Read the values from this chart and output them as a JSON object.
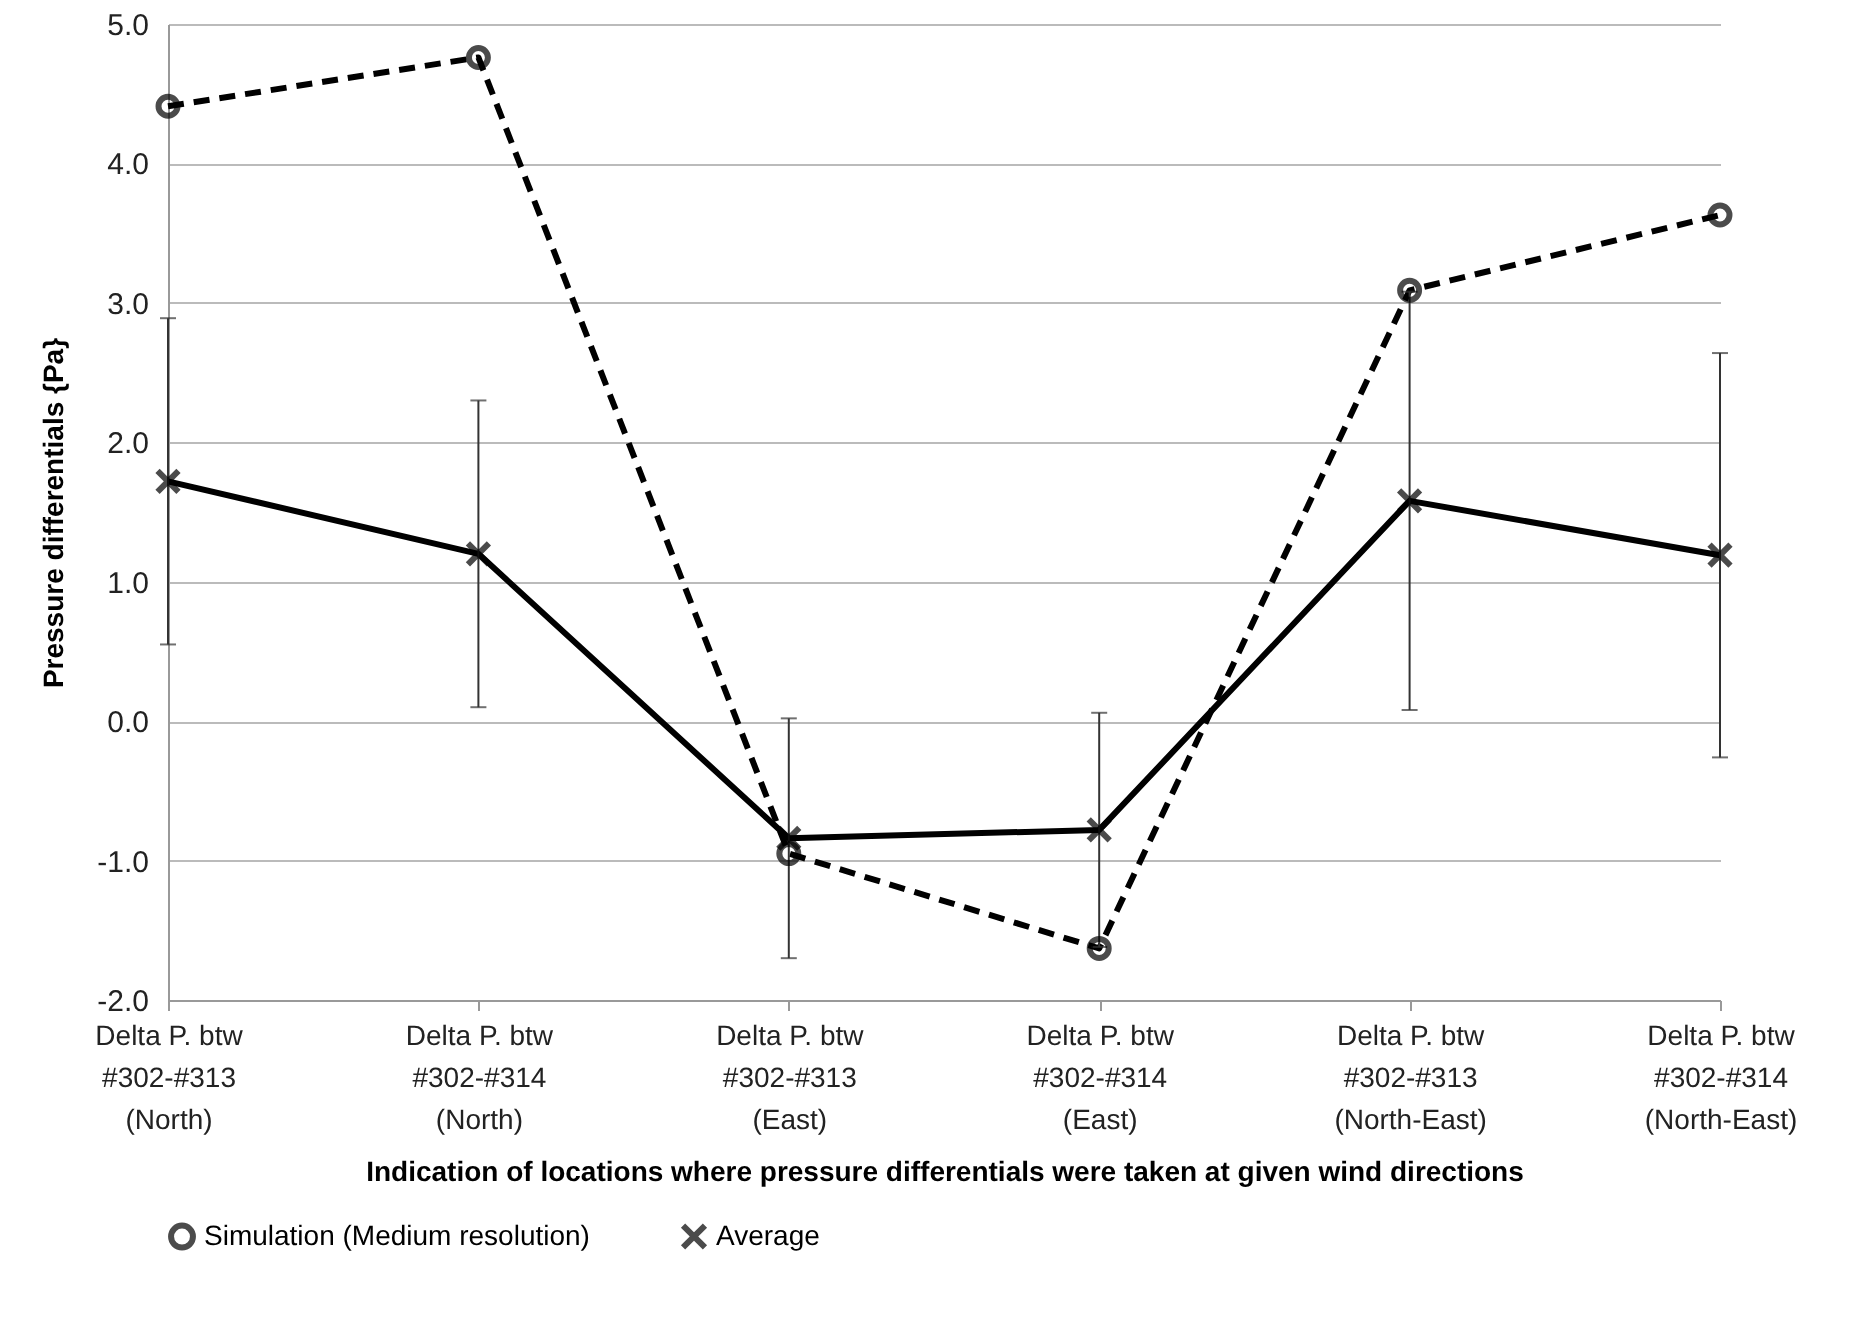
{
  "chart_data": {
    "type": "line",
    "xlabel": "Indication of locations where pressure differentials were taken at given wind directions",
    "ylabel": "Pressure differentials {Pa}",
    "categories": [
      [
        "Delta P. btw",
        "#302-#313",
        "(North)"
      ],
      [
        "Delta P. btw",
        "#302-#314",
        "(North)"
      ],
      [
        "Delta P. btw",
        "#302-#313",
        "(East)"
      ],
      [
        "Delta P. btw",
        "#302-#314",
        "(East)"
      ],
      [
        "Delta P. btw",
        "#302-#313",
        "(North-East)"
      ],
      [
        "Delta P. btw",
        "#302-#314",
        "(North-East)"
      ]
    ],
    "series": [
      {
        "name": "Simulation (Medium resolution)",
        "color": "#000000",
        "line_style": "dashed",
        "marker": "circle",
        "values": [
          4.41,
          4.76,
          -0.95,
          -1.63,
          3.09,
          3.63
        ]
      },
      {
        "name": "Average",
        "color": "#000000",
        "line_style": "solid",
        "marker": "cross",
        "values": [
          1.72,
          1.2,
          -0.84,
          -0.78,
          1.58,
          1.19
        ],
        "errors": [
          1.17,
          1.1,
          0.86,
          0.84,
          1.5,
          1.45
        ]
      }
    ],
    "ylim": [
      -2.0,
      5.0
    ],
    "yticks": [
      {
        "value": -2,
        "label": "-2.0"
      },
      {
        "value": -1,
        "label": "-1.0"
      },
      {
        "value": 0,
        "label": "0.0"
      },
      {
        "value": 1,
        "label": "1.0"
      },
      {
        "value": 2,
        "label": "2.0"
      },
      {
        "value": 3,
        "label": "3.0"
      },
      {
        "value": 4,
        "label": "4.0"
      },
      {
        "value": 5,
        "label": "5.0"
      }
    ],
    "grid": "y",
    "legend": "bottom"
  }
}
